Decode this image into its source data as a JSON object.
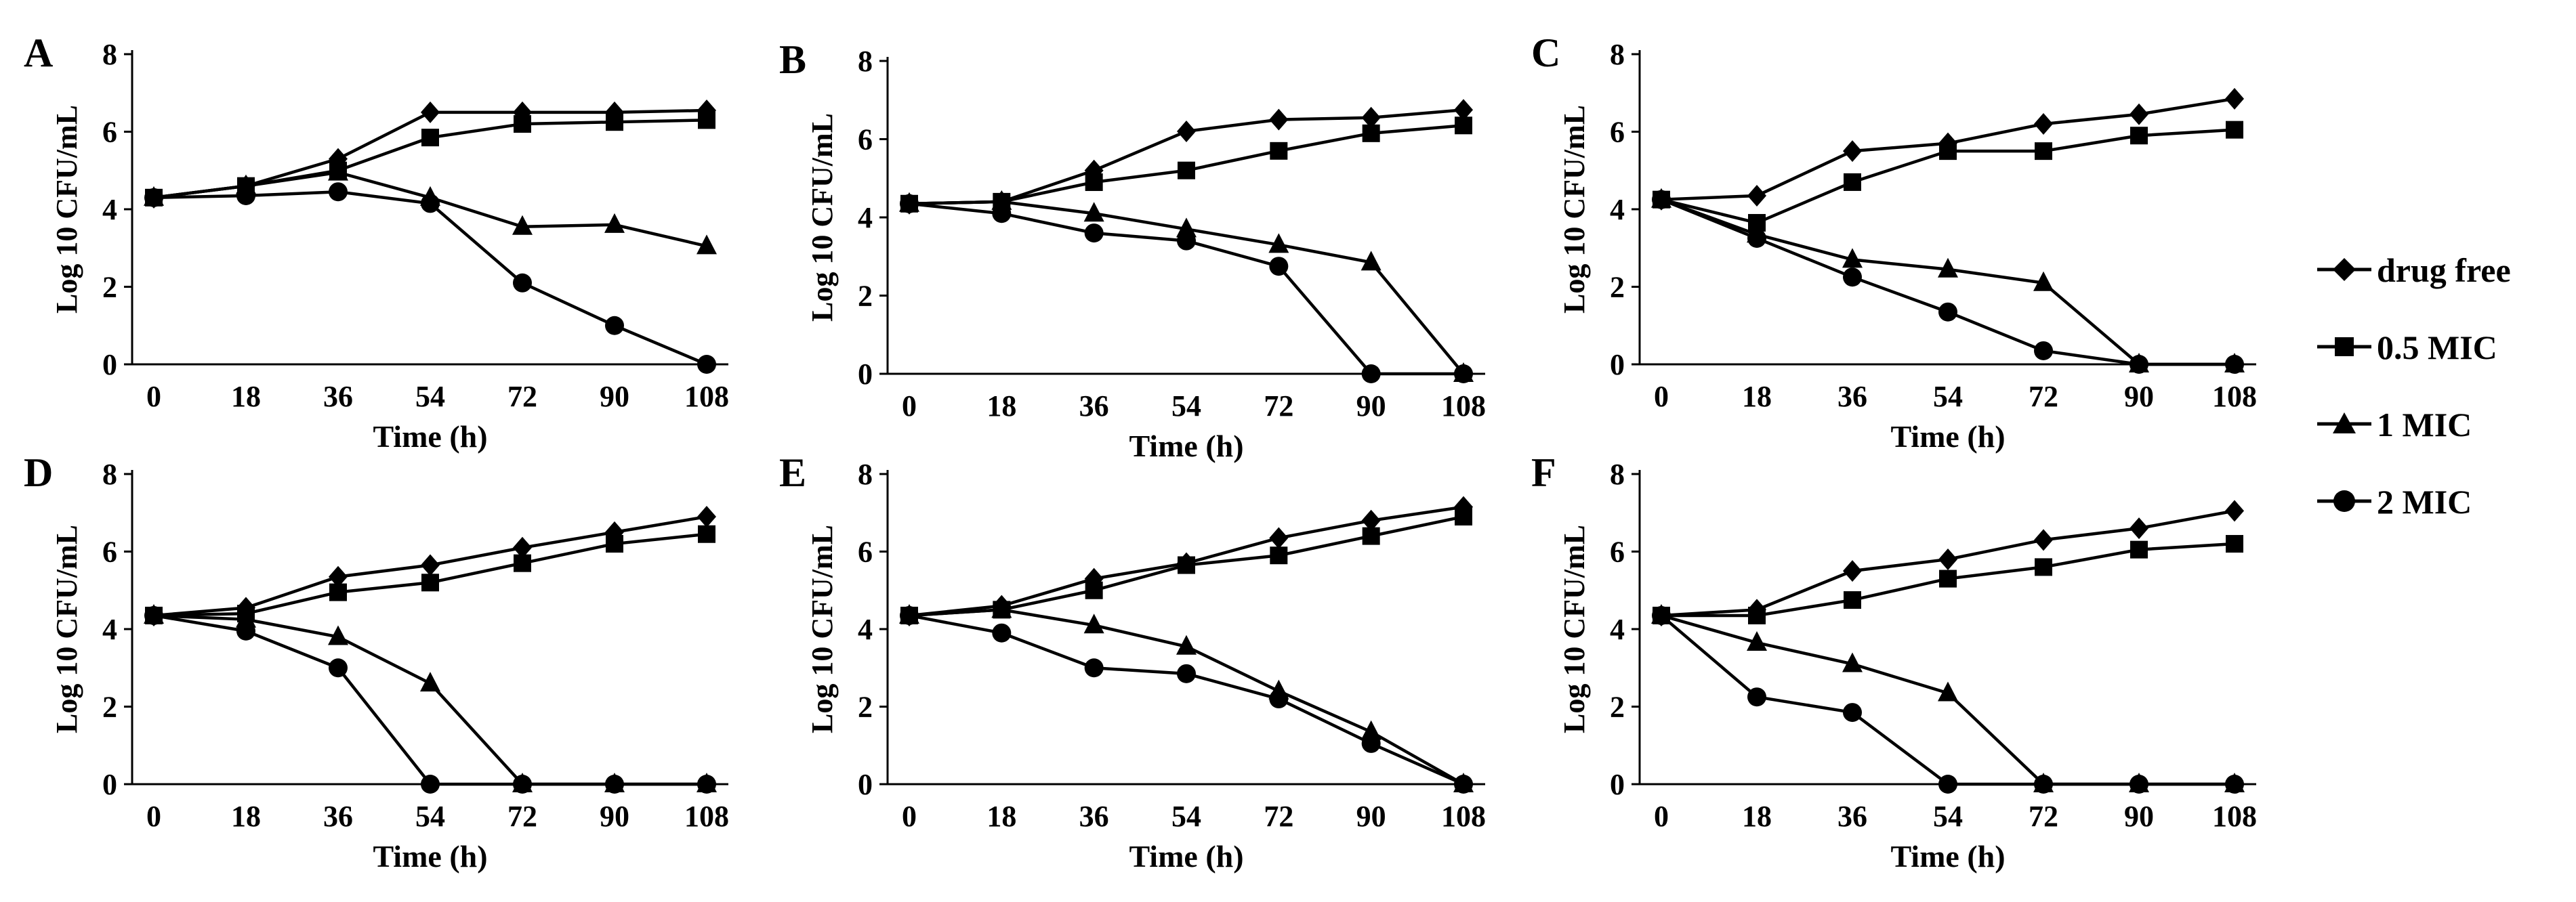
{
  "chart_data": [
    {
      "type": "line",
      "panel_label": "A",
      "x": [
        0,
        18,
        36,
        54,
        72,
        90,
        108
      ],
      "xlabel": "Time (h)",
      "ylabel": "Log 10 CFU/mL",
      "ylim": [
        0,
        8
      ],
      "yticks": [
        0,
        2,
        4,
        6,
        8
      ],
      "series": [
        {
          "name": "drug free",
          "values": [
            4.3,
            4.6,
            5.3,
            6.5,
            6.5,
            6.5,
            6.55
          ]
        },
        {
          "name": "0.5 MIC",
          "values": [
            4.3,
            4.6,
            5.0,
            5.85,
            6.2,
            6.25,
            6.3
          ]
        },
        {
          "name": "1 MIC",
          "values": [
            4.3,
            4.6,
            4.95,
            4.3,
            3.55,
            3.6,
            3.05
          ]
        },
        {
          "name": "2 MIC",
          "values": [
            4.3,
            4.35,
            4.45,
            4.15,
            2.1,
            1.0,
            0
          ]
        }
      ]
    },
    {
      "type": "line",
      "panel_label": "B",
      "x": [
        0,
        18,
        36,
        54,
        72,
        90,
        108
      ],
      "xlabel": "Time (h)",
      "ylabel": "Log 10 CFU/mL",
      "ylim": [
        0,
        8
      ],
      "yticks": [
        0,
        2,
        4,
        6,
        8
      ],
      "series": [
        {
          "name": "drug free",
          "values": [
            4.35,
            4.4,
            5.2,
            6.2,
            6.5,
            6.55,
            6.75
          ]
        },
        {
          "name": "0.5 MIC",
          "values": [
            4.35,
            4.4,
            4.9,
            5.2,
            5.7,
            6.15,
            6.35
          ]
        },
        {
          "name": "1 MIC",
          "values": [
            4.35,
            4.4,
            4.1,
            3.7,
            3.3,
            2.85,
            0
          ]
        },
        {
          "name": "2 MIC",
          "values": [
            4.35,
            4.1,
            3.6,
            3.4,
            2.75,
            0,
            0
          ]
        }
      ]
    },
    {
      "type": "line",
      "panel_label": "C",
      "x": [
        0,
        18,
        36,
        54,
        72,
        90,
        108
      ],
      "xlabel": "Time (h)",
      "ylabel": "Log 10 CFU/mL",
      "ylim": [
        0,
        8
      ],
      "yticks": [
        0,
        2,
        4,
        6,
        8
      ],
      "series": [
        {
          "name": "drug free",
          "values": [
            4.25,
            4.35,
            5.5,
            5.7,
            6.2,
            6.45,
            6.85
          ]
        },
        {
          "name": "0.5 MIC",
          "values": [
            4.25,
            3.65,
            4.7,
            5.5,
            5.5,
            5.9,
            6.05
          ]
        },
        {
          "name": "1 MIC",
          "values": [
            4.25,
            3.35,
            2.7,
            2.45,
            2.1,
            0,
            0
          ]
        },
        {
          "name": "2 MIC",
          "values": [
            4.25,
            3.25,
            2.25,
            1.35,
            0.35,
            0,
            0
          ]
        }
      ]
    },
    {
      "type": "line",
      "panel_label": "D",
      "x": [
        0,
        18,
        36,
        54,
        72,
        90,
        108
      ],
      "xlabel": "Time (h)",
      "ylabel": "Log 10 CFU/mL",
      "ylim": [
        0,
        8
      ],
      "yticks": [
        0,
        2,
        4,
        6,
        8
      ],
      "series": [
        {
          "name": "drug free",
          "values": [
            4.35,
            4.55,
            5.35,
            5.65,
            6.1,
            6.5,
            6.9
          ]
        },
        {
          "name": "0.5 MIC",
          "values": [
            4.35,
            4.4,
            4.95,
            5.2,
            5.7,
            6.2,
            6.45
          ]
        },
        {
          "name": "1 MIC",
          "values": [
            4.35,
            4.25,
            3.8,
            2.6,
            0,
            0,
            0
          ]
        },
        {
          "name": "2 MIC",
          "values": [
            4.35,
            3.95,
            3.0,
            0,
            0,
            0,
            0
          ]
        }
      ]
    },
    {
      "type": "line",
      "panel_label": "E",
      "x": [
        0,
        18,
        36,
        54,
        72,
        90,
        108
      ],
      "xlabel": "Time (h)",
      "ylabel": "Log 10 CFU/mL",
      "ylim": [
        0,
        8
      ],
      "yticks": [
        0,
        2,
        4,
        6,
        8
      ],
      "series": [
        {
          "name": "drug free",
          "values": [
            4.35,
            4.6,
            5.3,
            5.7,
            6.35,
            6.8,
            7.15
          ]
        },
        {
          "name": "0.5 MIC",
          "values": [
            4.35,
            4.5,
            5.0,
            5.65,
            5.9,
            6.4,
            6.9
          ]
        },
        {
          "name": "1 MIC",
          "values": [
            4.35,
            4.5,
            4.1,
            3.55,
            2.4,
            1.35,
            0
          ]
        },
        {
          "name": "2 MIC",
          "values": [
            4.35,
            3.9,
            3.0,
            2.85,
            2.2,
            1.05,
            0
          ]
        }
      ]
    },
    {
      "type": "line",
      "panel_label": "F",
      "x": [
        0,
        18,
        36,
        54,
        72,
        90,
        108
      ],
      "xlabel": "Time (h)",
      "ylabel": "Log 10 CFU/mL",
      "ylim": [
        0,
        8
      ],
      "yticks": [
        0,
        2,
        4,
        6,
        8
      ],
      "series": [
        {
          "name": "drug free",
          "values": [
            4.35,
            4.5,
            5.5,
            5.8,
            6.3,
            6.6,
            7.05
          ]
        },
        {
          "name": "0.5 MIC",
          "values": [
            4.35,
            4.35,
            4.75,
            5.3,
            5.6,
            6.05,
            6.2
          ]
        },
        {
          "name": "1 MIC",
          "values": [
            4.35,
            3.65,
            3.1,
            2.35,
            0,
            0,
            0
          ]
        },
        {
          "name": "2 MIC",
          "values": [
            4.35,
            2.25,
            1.85,
            0,
            0,
            0,
            0
          ]
        }
      ]
    }
  ],
  "legend": {
    "items": [
      {
        "label": "drug free",
        "marker": "diamond"
      },
      {
        "label": "0.5 MIC",
        "marker": "square"
      },
      {
        "label": "1 MIC",
        "marker": "triangle"
      },
      {
        "label": "2 MIC",
        "marker": "circle"
      }
    ]
  }
}
